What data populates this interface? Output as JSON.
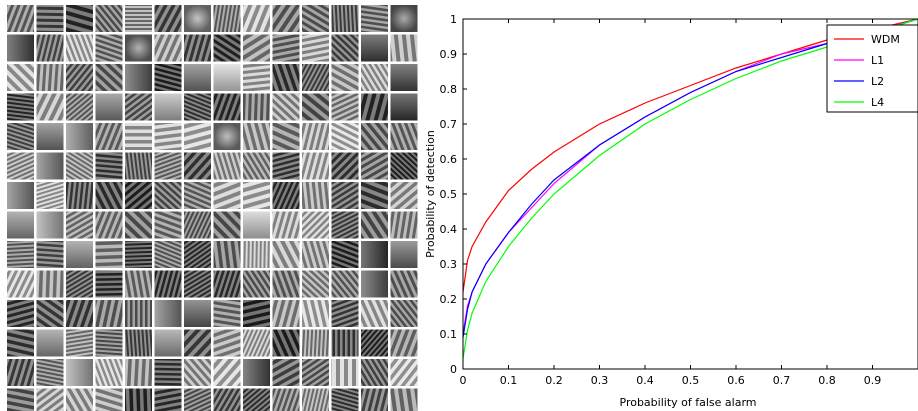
{
  "filter_grid": {
    "rows": 14,
    "cols": 14,
    "textures": [
      "stripe",
      "stripe",
      "stripe",
      "stripe",
      "stripe",
      "stripe",
      "blob",
      "stripe",
      "stripe",
      "stripe",
      "stripe",
      "stripe",
      "stripe",
      "blob",
      "flat",
      "stripe",
      "stripe",
      "stripe",
      "blob",
      "stripe",
      "stripe",
      "stripe",
      "stripe",
      "stripe",
      "stripe",
      "stripe",
      "flat",
      "stripe",
      "stripe",
      "stripe",
      "stripe",
      "stripe",
      "flat",
      "stripe",
      "flat",
      "flat",
      "stripe",
      "stripe",
      "stripe",
      "stripe",
      "stripe",
      "flat",
      "stripe",
      "stripe",
      "stripe",
      "flat",
      "stripe",
      "flat",
      "stripe",
      "stripe",
      "stripe",
      "stripe",
      "stripe",
      "stripe",
      "stripe",
      "flat",
      "stripe",
      "flat",
      "flat",
      "stripe",
      "stripe",
      "stripe",
      "stripe",
      "blob",
      "stripe",
      "stripe",
      "stripe",
      "stripe",
      "stripe",
      "stripe",
      "stripe",
      "flat",
      "stripe",
      "stripe",
      "stripe",
      "stripe",
      "stripe",
      "stripe",
      "stripe",
      "stripe",
      "stripe",
      "stripe",
      "stripe",
      "stripe",
      "flat",
      "stripe",
      "stripe",
      "stripe",
      "stripe",
      "stripe",
      "stripe",
      "stripe",
      "stripe",
      "stripe",
      "stripe",
      "stripe",
      "stripe",
      "stripe",
      "flat",
      "flat",
      "stripe",
      "stripe",
      "stripe",
      "stripe",
      "stripe",
      "stripe",
      "flat",
      "stripe",
      "stripe",
      "stripe",
      "stripe",
      "stripe",
      "stripe",
      "stripe",
      "flat",
      "stripe",
      "stripe",
      "stripe",
      "stripe",
      "stripe",
      "stripe",
      "stripe",
      "stripe",
      "stripe",
      "flat",
      "flat",
      "stripe",
      "stripe",
      "stripe",
      "stripe",
      "stripe",
      "stripe",
      "stripe",
      "stripe",
      "stripe",
      "stripe",
      "stripe",
      "stripe",
      "flat",
      "stripe",
      "stripe",
      "stripe",
      "stripe",
      "stripe",
      "stripe",
      "flat",
      "flat",
      "stripe",
      "stripe",
      "stripe",
      "stripe",
      "stripe",
      "stripe",
      "stripe",
      "stripe",
      "flat",
      "stripe",
      "stripe",
      "stripe",
      "flat",
      "stripe",
      "stripe",
      "stripe",
      "stripe",
      "stripe",
      "stripe",
      "stripe",
      "stripe",
      "stripe",
      "stripe",
      "flat",
      "stripe",
      "stripe",
      "stripe",
      "stripe",
      "stripe",
      "flat",
      "stripe",
      "stripe",
      "stripe",
      "stripe",
      "stripe",
      "stripe",
      "stripe",
      "stripe",
      "stripe",
      "stripe",
      "stripe",
      "stripe",
      "stripe",
      "stripe",
      "stripe",
      "stripe",
      "stripe",
      "stripe",
      "stripe"
    ]
  },
  "chart_data": {
    "type": "line",
    "title": "",
    "xlabel": "Probability of false alarm",
    "ylabel": "Probability of detection",
    "xlim": [
      0,
      1
    ],
    "ylim": [
      0,
      1
    ],
    "x_ticks": [
      "0",
      "0.1",
      "0.2",
      "0.3",
      "0.4",
      "0.5",
      "0.6",
      "0.7",
      "0.8",
      "0.9"
    ],
    "y_ticks": [
      "0",
      "0.1",
      "0.2",
      "0.3",
      "0.4",
      "0.5",
      "0.6",
      "0.7",
      "0.8",
      "0.9",
      "1"
    ],
    "grid": false,
    "legend_position": "top-right",
    "series": [
      {
        "name": "WDM",
        "color": "#ff0000",
        "style": "solid",
        "x": [
          0,
          0.01,
          0.02,
          0.05,
          0.1,
          0.15,
          0.2,
          0.3,
          0.4,
          0.5,
          0.6,
          0.7,
          0.8,
          0.9,
          1.0
        ],
        "y": [
          0.22,
          0.31,
          0.35,
          0.42,
          0.51,
          0.57,
          0.62,
          0.7,
          0.76,
          0.81,
          0.86,
          0.9,
          0.94,
          0.97,
          1.0
        ]
      },
      {
        "name": "L1",
        "color": "#ff00ff",
        "style": "solid",
        "x": [
          0,
          0.01,
          0.02,
          0.05,
          0.1,
          0.15,
          0.2,
          0.3,
          0.4,
          0.5,
          0.6,
          0.7,
          0.8,
          0.9,
          1.0
        ],
        "y": [
          0.1,
          0.18,
          0.22,
          0.3,
          0.39,
          0.46,
          0.53,
          0.64,
          0.72,
          0.79,
          0.85,
          0.9,
          0.93,
          0.96,
          1.0
        ]
      },
      {
        "name": "L2",
        "color": "#0000ff",
        "style": "solid",
        "x": [
          0,
          0.01,
          0.02,
          0.05,
          0.1,
          0.15,
          0.2,
          0.3,
          0.4,
          0.5,
          0.6,
          0.7,
          0.8,
          0.9,
          1.0
        ],
        "y": [
          0.09,
          0.17,
          0.22,
          0.3,
          0.39,
          0.47,
          0.54,
          0.64,
          0.72,
          0.79,
          0.85,
          0.89,
          0.93,
          0.96,
          1.0
        ]
      },
      {
        "name": "L4",
        "color": "#00ff00",
        "style": "solid",
        "x": [
          0,
          0.01,
          0.02,
          0.05,
          0.1,
          0.15,
          0.2,
          0.3,
          0.4,
          0.5,
          0.6,
          0.7,
          0.8,
          0.9,
          1.0
        ],
        "y": [
          0.03,
          0.11,
          0.16,
          0.25,
          0.35,
          0.43,
          0.5,
          0.61,
          0.7,
          0.77,
          0.83,
          0.88,
          0.92,
          0.96,
          1.0
        ]
      }
    ]
  }
}
